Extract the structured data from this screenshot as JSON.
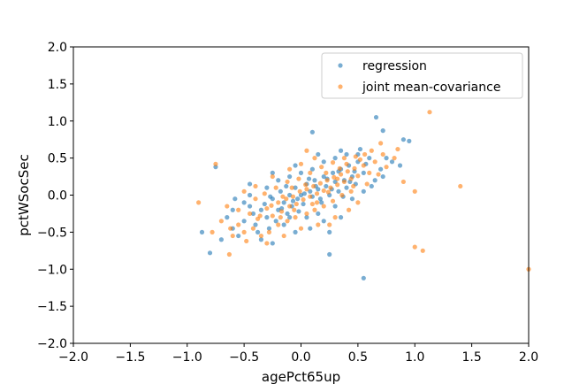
{
  "chart_data": {
    "type": "scatter",
    "title": "",
    "xlabel": "agePct65up",
    "ylabel": "pctWSocSec",
    "xlim": [
      -2.0,
      2.0
    ],
    "ylim": [
      -2.0,
      2.0
    ],
    "xticks": [
      -2.0,
      -1.5,
      -1.0,
      -0.5,
      0.0,
      0.5,
      1.0,
      1.5,
      2.0
    ],
    "yticks": [
      -2.0,
      -1.5,
      -1.0,
      -0.5,
      0.0,
      0.5,
      1.0,
      1.5,
      2.0
    ],
    "xtick_labels": [
      "−2.0",
      "−1.5",
      "−1.0",
      "−0.5",
      "0.0",
      "0.5",
      "1.0",
      "1.5",
      "2.0"
    ],
    "ytick_labels": [
      "−2.0",
      "−1.5",
      "−1.0",
      "−0.5",
      "0.0",
      "0.5",
      "1.0",
      "1.5",
      "2.0"
    ],
    "grid": false,
    "legend_position": "top-right",
    "series": [
      {
        "name": "regression",
        "color": "#1f77b4",
        "outliers": [
          [
            0.55,
            -1.12
          ],
          [
            -0.8,
            -0.78
          ],
          [
            0.25,
            -0.8
          ],
          [
            0.66,
            1.05
          ],
          [
            0.9,
            0.75
          ],
          [
            0.95,
            0.73
          ],
          [
            0.72,
            0.87
          ],
          [
            0.87,
            0.4
          ],
          [
            -0.75,
            0.38
          ],
          [
            0.1,
            0.85
          ],
          [
            -0.87,
            -0.5
          ],
          [
            0.5,
            0.55
          ]
        ],
        "points": [
          [
            -0.6,
            -0.45
          ],
          [
            -0.45,
            -0.15
          ],
          [
            -0.35,
            -0.2
          ],
          [
            -0.3,
            -0.3
          ],
          [
            -0.25,
            -0.05
          ],
          [
            -0.2,
            -0.2
          ],
          [
            -0.18,
            0.05
          ],
          [
            -0.15,
            -0.1
          ],
          [
            -0.12,
            -0.25
          ],
          [
            -0.1,
            0.0
          ],
          [
            -0.08,
            -0.15
          ],
          [
            -0.05,
            0.1
          ],
          [
            -0.03,
            -0.05
          ],
          [
            0.0,
            0.0
          ],
          [
            0.02,
            -0.12
          ],
          [
            0.05,
            0.15
          ],
          [
            0.08,
            0.05
          ],
          [
            0.1,
            -0.02
          ],
          [
            0.12,
            0.2
          ],
          [
            0.15,
            0.08
          ],
          [
            0.18,
            -0.1
          ],
          [
            0.2,
            0.25
          ],
          [
            0.22,
            0.12
          ],
          [
            0.25,
            0.0
          ],
          [
            0.28,
            0.3
          ],
          [
            0.3,
            0.18
          ],
          [
            0.33,
            0.05
          ],
          [
            0.35,
            0.35
          ],
          [
            0.38,
            0.2
          ],
          [
            0.4,
            0.1
          ],
          [
            0.42,
            0.4
          ],
          [
            0.45,
            0.25
          ],
          [
            0.48,
            0.15
          ],
          [
            0.5,
            0.45
          ],
          [
            0.55,
            0.3
          ],
          [
            0.6,
            0.5
          ],
          [
            -0.5,
            -0.35
          ],
          [
            -0.55,
            -0.55
          ],
          [
            -0.4,
            -0.4
          ],
          [
            -0.65,
            -0.3
          ],
          [
            -0.7,
            -0.6
          ],
          [
            -0.38,
            -0.5
          ],
          [
            -0.28,
            -0.45
          ],
          [
            -0.22,
            -0.35
          ],
          [
            -0.15,
            -0.4
          ],
          [
            -0.1,
            -0.3
          ],
          [
            0.05,
            -0.3
          ],
          [
            0.15,
            -0.25
          ],
          [
            0.2,
            -0.35
          ],
          [
            0.3,
            -0.15
          ],
          [
            -0.3,
            0.1
          ],
          [
            -0.2,
            0.2
          ],
          [
            -0.1,
            0.25
          ],
          [
            0.0,
            0.3
          ],
          [
            0.1,
            0.35
          ],
          [
            0.2,
            0.45
          ],
          [
            0.3,
            0.5
          ],
          [
            0.4,
            0.55
          ],
          [
            -0.45,
            0.0
          ],
          [
            -0.5,
            -0.1
          ],
          [
            -0.6,
            -0.2
          ],
          [
            0.45,
            -0.05
          ],
          [
            0.55,
            0.05
          ],
          [
            0.65,
            0.2
          ],
          [
            0.7,
            0.35
          ],
          [
            0.8,
            0.45
          ],
          [
            -0.35,
            -0.6
          ],
          [
            -0.25,
            -0.65
          ],
          [
            -0.05,
            -0.5
          ],
          [
            0.08,
            -0.45
          ],
          [
            0.35,
            -0.3
          ],
          [
            0.25,
            -0.5
          ],
          [
            -0.42,
            -0.25
          ],
          [
            -0.32,
            -0.12
          ],
          [
            -0.27,
            -0.02
          ],
          [
            -0.17,
            -0.18
          ],
          [
            -0.07,
            -0.08
          ],
          [
            0.03,
            0.02
          ],
          [
            0.13,
            0.12
          ],
          [
            0.23,
            0.22
          ],
          [
            0.33,
            0.32
          ],
          [
            0.43,
            0.18
          ],
          [
            -0.13,
            0.12
          ],
          [
            -0.02,
            -0.22
          ],
          [
            0.07,
            0.22
          ],
          [
            0.17,
            -0.05
          ],
          [
            0.27,
            0.08
          ],
          [
            0.37,
            -0.02
          ],
          [
            0.47,
            0.32
          ],
          [
            0.57,
            0.42
          ],
          [
            0.62,
            0.12
          ],
          [
            0.72,
            0.25
          ],
          [
            0.75,
            0.5
          ],
          [
            0.52,
            0.62
          ],
          [
            0.35,
            0.6
          ],
          [
            0.15,
            0.55
          ],
          [
            -0.05,
            0.4
          ],
          [
            -0.25,
            0.3
          ],
          [
            -0.45,
            0.15
          ],
          [
            -0.58,
            -0.05
          ]
        ]
      },
      {
        "name": "joint mean-covariance",
        "color": "#ff7f0e",
        "outliers": [
          [
            1.13,
            1.12
          ],
          [
            1.4,
            0.12
          ],
          [
            2.0,
            -1.0
          ],
          [
            1.0,
            -0.7
          ],
          [
            1.07,
            -0.75
          ],
          [
            -0.75,
            0.42
          ],
          [
            -0.9,
            -0.1
          ],
          [
            0.7,
            0.7
          ],
          [
            0.9,
            0.18
          ],
          [
            1.0,
            0.05
          ],
          [
            -0.63,
            -0.8
          ],
          [
            0.05,
            0.6
          ]
        ],
        "points": [
          [
            -0.55,
            -0.4
          ],
          [
            -0.45,
            -0.25
          ],
          [
            -0.38,
            -0.32
          ],
          [
            -0.3,
            -0.18
          ],
          [
            -0.25,
            -0.28
          ],
          [
            -0.2,
            -0.1
          ],
          [
            -0.17,
            -0.22
          ],
          [
            -0.13,
            -0.05
          ],
          [
            -0.1,
            -0.15
          ],
          [
            -0.07,
            -0.02
          ],
          [
            -0.04,
            -0.12
          ],
          [
            -0.01,
            0.05
          ],
          [
            0.02,
            -0.06
          ],
          [
            0.05,
            0.08
          ],
          [
            0.08,
            -0.02
          ],
          [
            0.11,
            0.12
          ],
          [
            0.14,
            0.02
          ],
          [
            0.17,
            0.16
          ],
          [
            0.2,
            0.06
          ],
          [
            0.23,
            0.2
          ],
          [
            0.26,
            0.1
          ],
          [
            0.29,
            0.24
          ],
          [
            0.32,
            0.14
          ],
          [
            0.35,
            0.28
          ],
          [
            0.38,
            0.18
          ],
          [
            0.41,
            0.32
          ],
          [
            0.44,
            0.22
          ],
          [
            0.47,
            0.36
          ],
          [
            0.5,
            0.26
          ],
          [
            0.55,
            0.4
          ],
          [
            0.6,
            0.3
          ],
          [
            0.65,
            0.45
          ],
          [
            -0.6,
            -0.55
          ],
          [
            -0.5,
            -0.5
          ],
          [
            -0.42,
            -0.45
          ],
          [
            -0.35,
            -0.55
          ],
          [
            -0.28,
            -0.5
          ],
          [
            -0.2,
            -0.4
          ],
          [
            -0.12,
            -0.35
          ],
          [
            -0.05,
            -0.3
          ],
          [
            0.05,
            -0.25
          ],
          [
            0.12,
            -0.2
          ],
          [
            0.2,
            -0.15
          ],
          [
            0.28,
            -0.08
          ],
          [
            0.36,
            0.0
          ],
          [
            0.44,
            0.05
          ],
          [
            -0.4,
            -0.05
          ],
          [
            -0.32,
            0.02
          ],
          [
            -0.22,
            0.1
          ],
          [
            -0.12,
            0.18
          ],
          [
            -0.02,
            0.22
          ],
          [
            0.08,
            0.3
          ],
          [
            0.18,
            0.38
          ],
          [
            0.28,
            0.44
          ],
          [
            0.38,
            0.5
          ],
          [
            0.48,
            0.52
          ],
          [
            -0.7,
            -0.35
          ],
          [
            -0.65,
            -0.15
          ],
          [
            -0.55,
            -0.2
          ],
          [
            0.58,
            0.15
          ],
          [
            0.68,
            0.28
          ],
          [
            0.75,
            0.38
          ],
          [
            0.82,
            0.5
          ],
          [
            -0.48,
            -0.62
          ],
          [
            -0.3,
            -0.65
          ],
          [
            -0.15,
            -0.55
          ],
          [
            0.0,
            -0.45
          ],
          [
            0.15,
            -0.4
          ],
          [
            0.3,
            -0.3
          ],
          [
            0.42,
            -0.2
          ],
          [
            -0.36,
            -0.28
          ],
          [
            -0.26,
            -0.14
          ],
          [
            -0.16,
            -0.02
          ],
          [
            -0.06,
            -0.2
          ],
          [
            0.04,
            0.14
          ],
          [
            0.14,
            -0.1
          ],
          [
            0.24,
            0.04
          ],
          [
            0.34,
            0.36
          ],
          [
            0.46,
            0.12
          ],
          [
            0.56,
            0.55
          ],
          [
            -0.18,
            -0.3
          ],
          [
            -0.08,
            0.1
          ],
          [
            0.1,
            -0.12
          ],
          [
            0.22,
            0.3
          ],
          [
            0.32,
            0.22
          ],
          [
            0.4,
            0.42
          ],
          [
            0.52,
            0.48
          ],
          [
            0.62,
            0.6
          ],
          [
            0.72,
            0.55
          ],
          [
            0.85,
            0.62
          ],
          [
            -0.5,
            0.05
          ],
          [
            -0.4,
            0.12
          ],
          [
            -0.25,
            0.25
          ],
          [
            -0.1,
            0.35
          ],
          [
            0.0,
            0.42
          ],
          [
            0.12,
            0.5
          ],
          [
            -0.62,
            -0.45
          ],
          [
            -0.78,
            -0.5
          ],
          [
            0.25,
            -0.4
          ],
          [
            0.5,
            -0.1
          ]
        ]
      }
    ]
  }
}
